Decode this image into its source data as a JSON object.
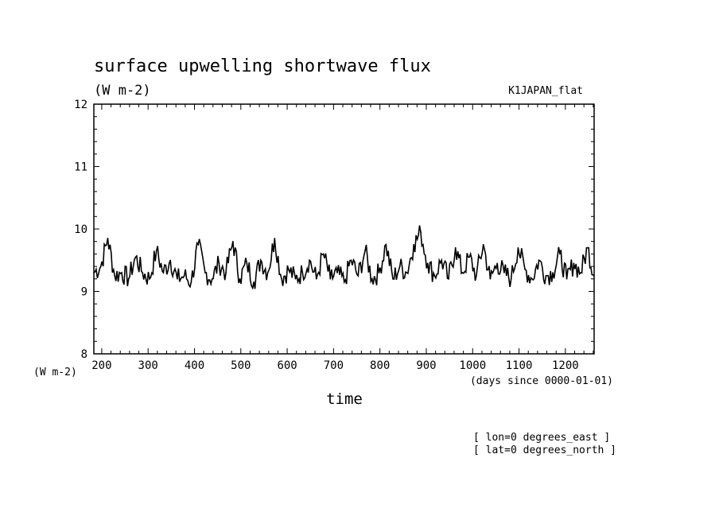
{
  "chart_data": {
    "type": "line",
    "title": "surface upwelling shortwave flux",
    "subtitle": "(W m-2)",
    "dataset_label": "K1JAPAN_flat",
    "xlabel": "time",
    "x_units": "(days since 0000-01-01)",
    "y_units": "(W m-2)",
    "xlim": [
      183,
      1262
    ],
    "ylim": [
      8,
      12
    ],
    "x_ticks": [
      200,
      300,
      400,
      500,
      600,
      700,
      800,
      900,
      1000,
      1100,
      1200
    ],
    "y_ticks": [
      8,
      9,
      10,
      11,
      12
    ],
    "annotations": [
      "[ lon=0 degrees_east ]",
      "[ lat=0 degrees_north ]"
    ],
    "grid": false,
    "series": [
      {
        "x": [
          183,
          198,
          213,
          228,
          243,
          258,
          273,
          288,
          303,
          318,
          333,
          348,
          363,
          378,
          393,
          408,
          423,
          438,
          453,
          468,
          483,
          498,
          513,
          528,
          543,
          558,
          573,
          588,
          603,
          618,
          633,
          648,
          663,
          678,
          693,
          708,
          723,
          738,
          753,
          768,
          783,
          798,
          813,
          828,
          843,
          858,
          873,
          888,
          903,
          918,
          933,
          948,
          963,
          978,
          993,
          1008,
          1023,
          1038,
          1053,
          1068,
          1083,
          1098,
          1113,
          1128,
          1143,
          1158,
          1173,
          1188,
          1203,
          1218,
          1233,
          1248,
          1262
        ],
        "y": [
          9.3,
          9.4,
          9.85,
          9.25,
          9.3,
          9.2,
          9.55,
          9.3,
          9.2,
          9.65,
          9.3,
          9.5,
          9.2,
          9.25,
          9.15,
          9.75,
          9.3,
          9.2,
          9.45,
          9.3,
          9.8,
          9.2,
          9.45,
          9.15,
          9.5,
          9.3,
          9.85,
          9.2,
          9.35,
          9.2,
          9.3,
          9.5,
          9.2,
          9.6,
          9.2,
          9.3,
          9.15,
          9.5,
          9.25,
          9.65,
          9.2,
          9.3,
          9.75,
          9.2,
          9.4,
          9.3,
          9.75,
          9.95,
          9.45,
          9.25,
          9.5,
          9.2,
          9.7,
          9.3,
          9.55,
          9.25,
          9.75,
          9.2,
          9.45,
          9.3,
          9.2,
          9.7,
          9.35,
          9.2,
          9.5,
          9.25,
          9.3,
          9.6,
          9.2,
          9.45,
          9.3,
          9.7,
          9.25
        ]
      }
    ]
  }
}
